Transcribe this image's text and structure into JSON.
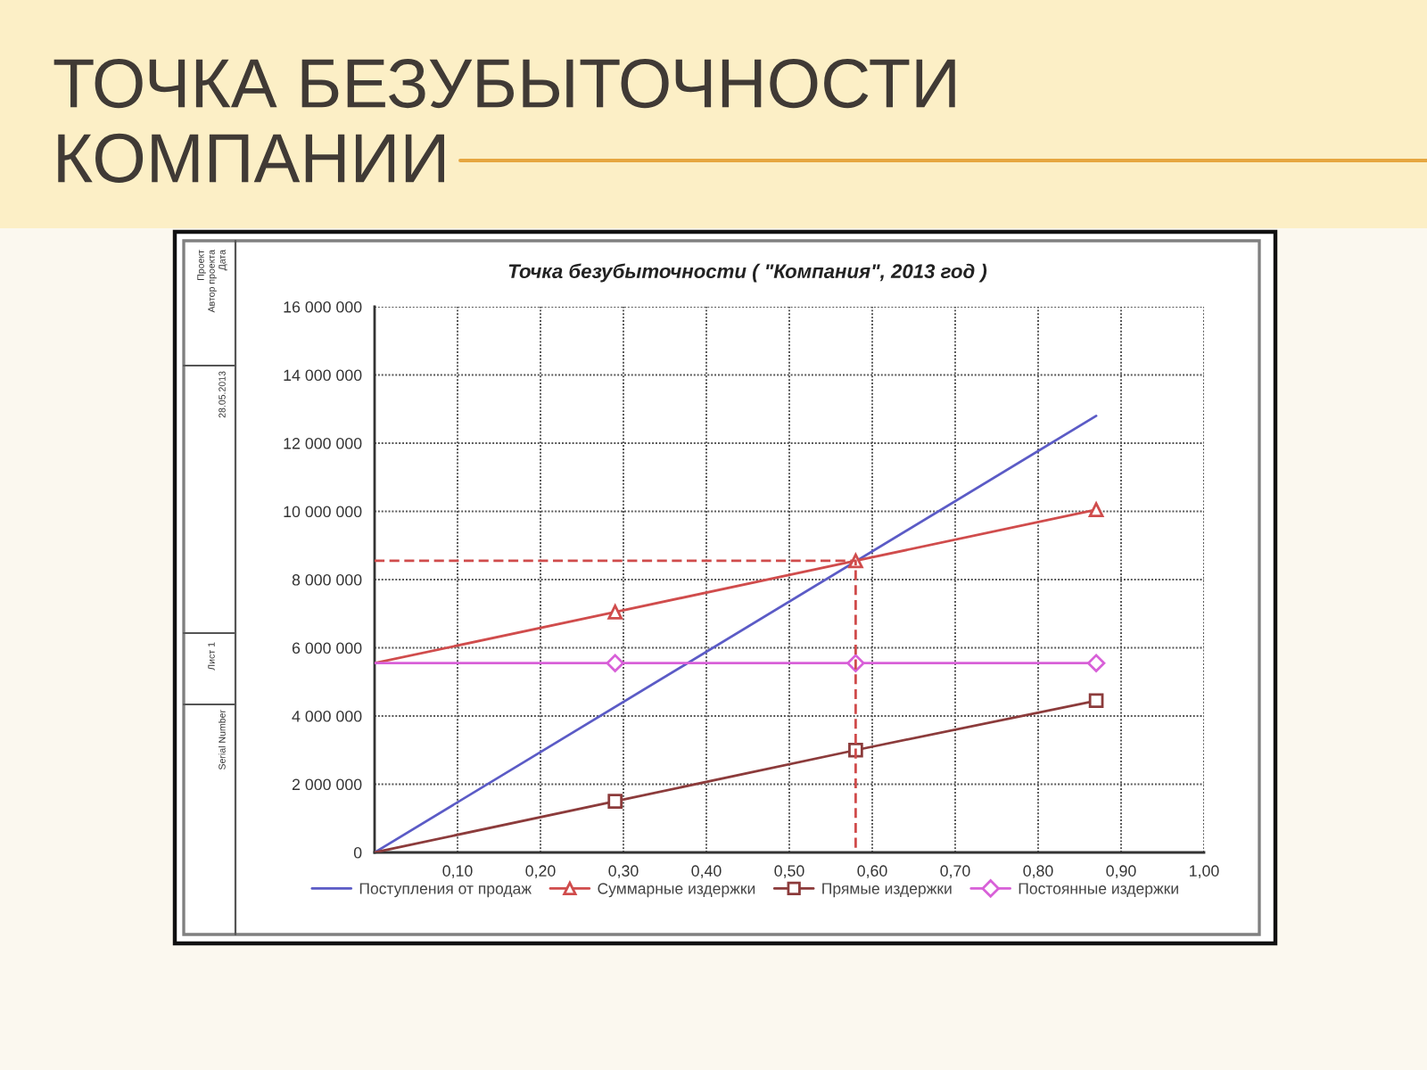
{
  "chart_data": {
    "type": "line",
    "title": "ТОЧКА БЕЗУБЫТОЧНОСТИ КОМПАНИИ",
    "subtitle": "Точка безубыточности ( \"Компания\", 2013 год )",
    "annotations": [
      "Проект",
      "Автор проекта",
      "Дата",
      "28.05.2013",
      "Лист 1",
      "Serial Number"
    ],
    "series": [
      {
        "name": "Поступления от продаж",
        "color": "#5b5bc6",
        "x": [
          0,
          0.87
        ],
        "values": [
          0,
          12800000
        ]
      },
      {
        "name": "Суммарные издержки",
        "color": "#d04c4c",
        "x": [
          0,
          0.29,
          0.58,
          0.87
        ],
        "values": [
          5550000,
          7050000,
          8550000,
          10050000
        ],
        "marker": "triangle"
      },
      {
        "name": "Прямые издержки",
        "color": "#8c3b3b",
        "x": [
          0,
          0.29,
          0.58,
          0.87
        ],
        "values": [
          0,
          1500000,
          3000000,
          4450000
        ],
        "marker": "square"
      },
      {
        "name": "Постоянные издержки",
        "color": "#d860d8",
        "x": [
          0,
          0.29,
          0.58,
          0.87
        ],
        "values": [
          5550000,
          5550000,
          5550000,
          5550000
        ],
        "marker": "diamond"
      },
      {
        "color": "#d04c4c",
        "x": [
          0,
          0.58,
          0.58
        ],
        "values": [
          8550000,
          8550000,
          0
        ],
        "line_style": "dashed"
      }
    ],
    "xlim": [
      0,
      1
    ],
    "ylim": [
      0,
      16000000
    ],
    "xticks": [
      {
        "value": 0.1,
        "label": "0,10"
      },
      {
        "value": 0.2,
        "label": "0,20"
      },
      {
        "value": 0.3,
        "label": "0,30"
      },
      {
        "value": 0.4,
        "label": "0,40"
      },
      {
        "value": 0.5,
        "label": "0,50"
      },
      {
        "value": 0.6,
        "label": "0,60"
      },
      {
        "value": 0.7,
        "label": "0,70"
      },
      {
        "value": 0.8,
        "label": "0,80"
      },
      {
        "value": 0.9,
        "label": "0,90"
      },
      {
        "value": 1.0,
        "label": "1,00"
      }
    ],
    "yticks": [
      0,
      {
        "value": 2000000,
        "label": "2 000 000"
      },
      {
        "value": 4000000,
        "label": "4 000 000"
      },
      {
        "value": 6000000,
        "label": "6 000 000"
      },
      {
        "value": 8000000,
        "label": "8 000 000"
      },
      {
        "value": 10000000,
        "label": "10 000 000"
      },
      {
        "value": 12000000,
        "label": "12 000 000"
      },
      {
        "value": 14000000,
        "label": "14 000 000"
      },
      {
        "value": 16000000,
        "label": "16 000 000"
      }
    ],
    "grid": true,
    "legend": "bottom"
  }
}
